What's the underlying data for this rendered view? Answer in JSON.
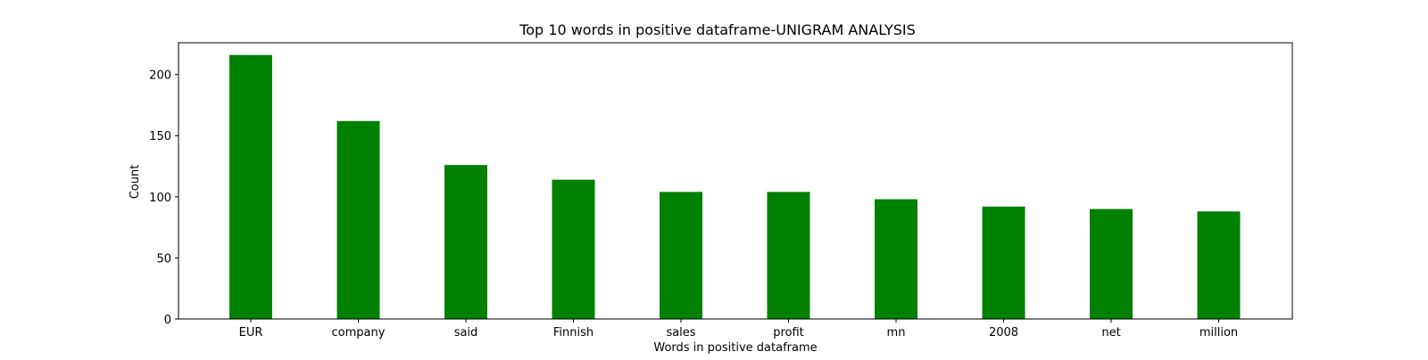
{
  "chart_data": {
    "type": "bar",
    "title": "Top 10 words in positive dataframe-UNIGRAM ANALYSIS",
    "xlabel": "Words in positive dataframe",
    "ylabel": "Count",
    "categories": [
      "EUR",
      "company",
      "said",
      "Finnish",
      "sales",
      "profit",
      "mn",
      "2008",
      "net",
      "million"
    ],
    "values": [
      216,
      162,
      126,
      114,
      104,
      104,
      98,
      92,
      90,
      88
    ],
    "ylim": [
      0,
      226
    ],
    "yticks": [
      0,
      50,
      100,
      150,
      200
    ],
    "grid": false,
    "legend": "none",
    "colors": {
      "bar": "#008000",
      "axes": "#000000",
      "background": "#ffffff"
    }
  }
}
